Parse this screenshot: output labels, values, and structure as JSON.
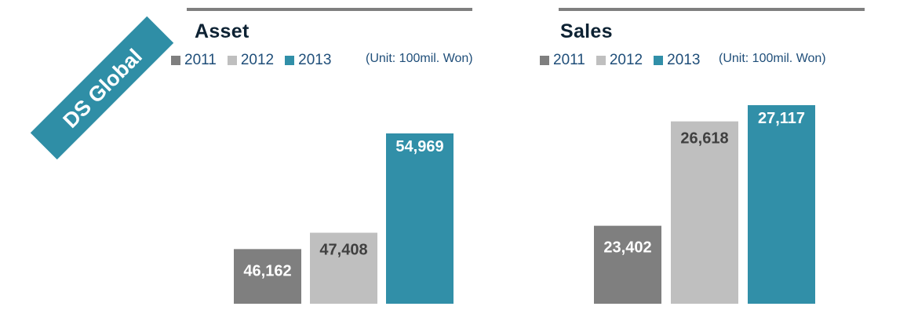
{
  "brand": {
    "ribbon_text": "DS Global",
    "ribbon_color": "#2f8ea6"
  },
  "colors": {
    "y2011": "#7f7f7f",
    "y2012": "#bfbfbf",
    "y2013": "#318fa8",
    "rule": "#7f7f7f",
    "label_dark": "#404040",
    "label_light": "#ffffff"
  },
  "chart_data": [
    {
      "type": "bar",
      "title": "Asset",
      "unit": "(Unit:  100mil.  Won)",
      "categories": [
        "2011",
        "2012",
        "2013"
      ],
      "values": [
        46162,
        47408,
        54969
      ],
      "value_labels": [
        "46,162",
        "47,408",
        "54,969"
      ],
      "legend": [
        "2011",
        "2012",
        "2013"
      ],
      "ylim": [
        42000,
        57000
      ],
      "grid": false,
      "legend_placement": "top-left"
    },
    {
      "type": "bar",
      "title": "Sales",
      "unit": "(Unit: 100mil. Won)",
      "categories": [
        "2011",
        "2012",
        "2013"
      ],
      "values": [
        23402,
        26618,
        27117
      ],
      "value_labels": [
        "23,402",
        "26,618",
        "27,117"
      ],
      "legend": [
        "2011",
        "2012",
        "2013"
      ],
      "ylim": [
        21000,
        27600
      ],
      "grid": false,
      "legend_placement": "top-left"
    }
  ]
}
